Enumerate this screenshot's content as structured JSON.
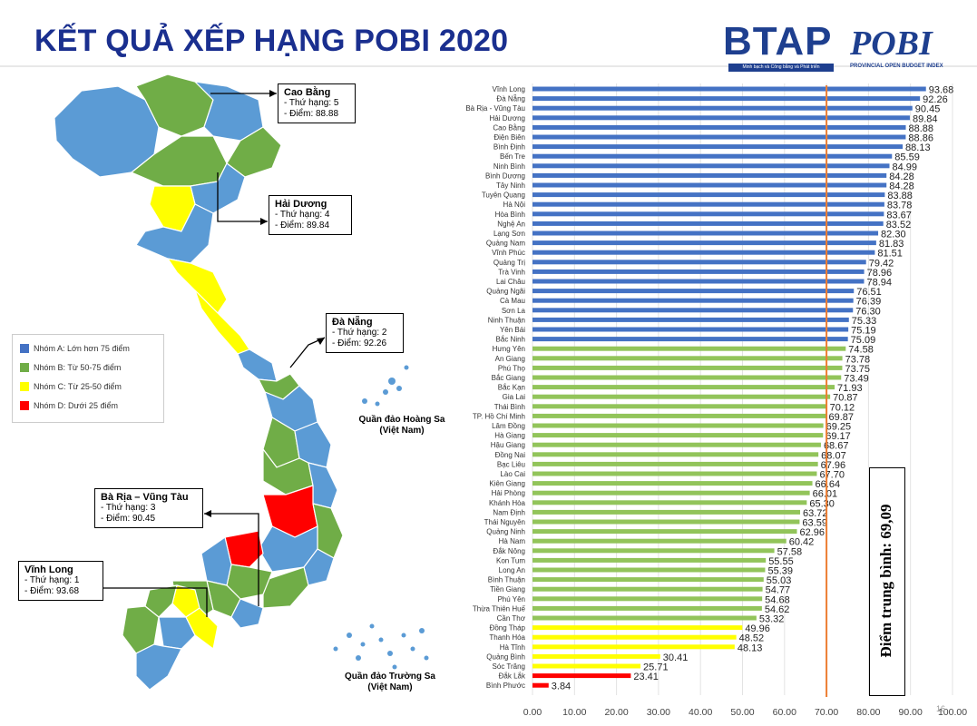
{
  "title": "KẾT QUẢ XẾP HẠNG POBI 2020",
  "logos": {
    "btap": "BTAP",
    "btap_tagline": "Minh bạch và Công bằng và Phát triển",
    "pobi": "POBI",
    "pobi_tagline": "PROVINCIAL OPEN BUDGET INDEX"
  },
  "legend": [
    {
      "label": "Nhóm A: Lớn hơn 75 điểm",
      "color": "#4472c4"
    },
    {
      "label": "Nhóm B: Từ 50-75 điểm",
      "color": "#70ad47"
    },
    {
      "label": "Nhóm C: Từ 25-50 điểm",
      "color": "#ffff00"
    },
    {
      "label": "Nhóm D: Dưới 25 điểm",
      "color": "#ff0000"
    }
  ],
  "callouts": [
    {
      "name": "Cao Bằng",
      "rank": "- Thứ hạng: 5",
      "score": "- Điểm: 88.88"
    },
    {
      "name": "Hải Dương",
      "rank": "- Thứ hạng: 4",
      "score": "- Điểm: 89.84"
    },
    {
      "name": "Đà Nẵng",
      "rank": "- Thứ hạng: 2",
      "score": "- Điểm: 92.26"
    },
    {
      "name": "Bà Rịa – Vũng Tàu",
      "rank": "- Thứ hạng: 3",
      "score": "- Điểm: 90.45"
    },
    {
      "name": "Vĩnh Long",
      "rank": "- Thứ hạng: 1",
      "score": "- Điểm: 93.68"
    }
  ],
  "islands": {
    "hoang_sa": "Quần đảo Hoàng Sa",
    "hoang_sa_sub": "(Việt Nam)",
    "truong_sa": "Quần đảo Trường Sa",
    "truong_sa_sub": "(Việt Nam)"
  },
  "average_label": "Điểm trung bình: 69,09",
  "page_number": "16",
  "chart_data": {
    "type": "bar",
    "orientation": "horizontal",
    "categories": [
      "Vĩnh Long",
      "Đà Nẵng",
      "Bà Rịa - Vũng Tàu",
      "Hải Dương",
      "Cao Bằng",
      "Điện Biên",
      "Bình Định",
      "Bến Tre",
      "Ninh Bình",
      "Bình Dương",
      "Tây Ninh",
      "Tuyên Quang",
      "Hà Nội",
      "Hòa Bình",
      "Nghệ An",
      "Lạng Sơn",
      "Quảng Nam",
      "Vĩnh Phúc",
      "Quảng Trị",
      "Trà Vinh",
      "Lai Châu",
      "Quảng Ngãi",
      "Cà Mau",
      "Sơn La",
      "Ninh Thuận",
      "Yên Bái",
      "Bắc Ninh",
      "Hưng Yên",
      "An Giang",
      "Phú Thọ",
      "Bắc Giang",
      "Bắc Kạn",
      "Gia Lai",
      "Thái Bình",
      "TP. Hồ Chí Minh",
      "Lâm Đồng",
      "Hà Giang",
      "Hậu Giang",
      "Đồng Nai",
      "Bạc Liêu",
      "Lào Cai",
      "Kiên Giang",
      "Hải Phòng",
      "Khánh Hòa",
      "Nam Định",
      "Thái Nguyên",
      "Quảng Ninh",
      "Hà Nam",
      "Đắk Nông",
      "Kon Tum",
      "Long An",
      "Bình Thuận",
      "Tiền Giang",
      "Phú Yên",
      "Thừa Thiên Huế",
      "Cần Thơ",
      "Đồng Tháp",
      "Thanh Hóa",
      "Hà Tĩnh",
      "Quảng Bình",
      "Sóc Trăng",
      "Đắk Lắk",
      "Bình Phước"
    ],
    "values": [
      93.68,
      92.26,
      90.45,
      89.84,
      88.88,
      88.86,
      88.13,
      85.59,
      84.99,
      84.28,
      84.28,
      83.88,
      83.78,
      83.67,
      83.52,
      82.3,
      81.83,
      81.51,
      79.42,
      78.96,
      78.94,
      76.51,
      76.39,
      76.3,
      75.33,
      75.19,
      75.09,
      74.58,
      73.78,
      73.75,
      73.49,
      71.93,
      70.87,
      70.12,
      69.87,
      69.25,
      69.17,
      68.67,
      68.07,
      67.96,
      67.7,
      66.64,
      66.01,
      65.3,
      63.72,
      63.59,
      62.96,
      60.42,
      57.58,
      55.55,
      55.39,
      55.03,
      54.77,
      54.68,
      54.62,
      53.32,
      49.96,
      48.52,
      48.13,
      30.41,
      25.71,
      23.41,
      3.84
    ],
    "value_labels": [
      "93.68",
      "92.26",
      "90.45",
      "89.84",
      "88.88",
      "88.86",
      "88.13",
      "85.59",
      "84.99",
      "84.28",
      "84.28",
      "83.88",
      "83.78",
      "83.67",
      "83.52",
      "82.30",
      "81.83",
      "81.51",
      "79.42",
      "78.96",
      "78.94",
      "76.51",
      "76.39",
      "76.30",
      "75.33",
      "75.19",
      "75.09",
      "74.58",
      "73.78",
      "73.75",
      "73.49",
      "71.93",
      "70.87",
      "70.12",
      "69.87",
      "69.25",
      "69.17",
      "68.67",
      "68.07",
      "67.96",
      "67.70",
      "66.64",
      "66.01",
      "65.30",
      "63.72",
      "63.59",
      "62.96",
      "60.42",
      "57.58",
      "55.55",
      "55.39",
      "55.03",
      "54.77",
      "54.68",
      "54.62",
      "53.32",
      "49.96",
      "48.52",
      "48.13",
      "30.41",
      "25.71",
      "23.41",
      "3.84"
    ],
    "group_colors": {
      "A": "#4472c4",
      "B": "#92c45a",
      "C": "#ffff00",
      "D": "#ff0000"
    },
    "xlim": [
      0,
      100
    ],
    "xticks": [
      0,
      10,
      20,
      30,
      40,
      50,
      60,
      70,
      80,
      90,
      100
    ],
    "xtick_labels": [
      "0.00",
      "10.00",
      "20.00",
      "30.00",
      "40.00",
      "50.00",
      "60.00",
      "70.00",
      "80.00",
      "90.00",
      "100.00"
    ],
    "reference_line": {
      "value": 70,
      "color": "#ed7d31"
    },
    "grid": true,
    "title": "",
    "xlabel": "",
    "ylabel": ""
  }
}
